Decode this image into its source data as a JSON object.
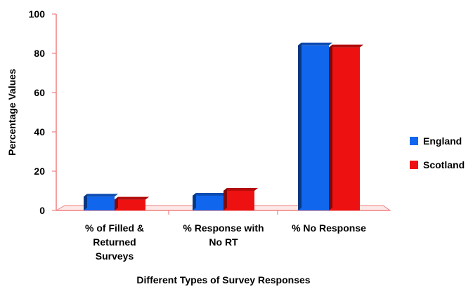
{
  "chart_data": {
    "type": "bar",
    "categories": [
      [
        "% of Filled &",
        "Returned",
        "Surveys"
      ],
      [
        "% Response with",
        "No RT"
      ],
      [
        "% No Response"
      ]
    ],
    "series": [
      {
        "name": "England",
        "values": [
          7,
          7.5,
          84
        ],
        "color": "#1166ee"
      },
      {
        "name": "Scotland",
        "values": [
          5.5,
          10,
          83
        ],
        "color": "#ee1111"
      }
    ],
    "title": "",
    "xlabel": "Different Types of Survey Responses",
    "ylabel": "Percentage Values",
    "ylim": [
      0,
      100
    ],
    "yticks": [
      0,
      20,
      40,
      60,
      80,
      100
    ],
    "grid": false,
    "legend_position": "right",
    "axis_color": "#f08080"
  }
}
